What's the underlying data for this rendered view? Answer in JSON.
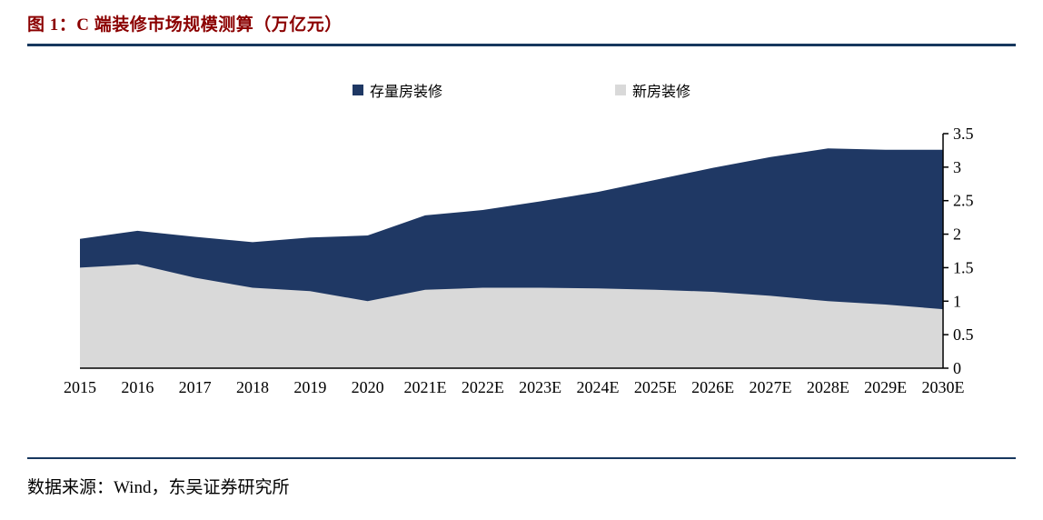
{
  "header": {
    "title": "图 1：C 端装修市场规模测算（万亿元）"
  },
  "footer": {
    "source": "数据来源：Wind，东吴证券研究所"
  },
  "chart_data": {
    "type": "area",
    "stacked": true,
    "title": "C 端装修市场规模测算（万亿元）",
    "xlabel": "",
    "ylabel": "",
    "ylim": [
      0,
      3.5
    ],
    "yticks": [
      0,
      0.5,
      1,
      1.5,
      2,
      2.5,
      3,
      3.5
    ],
    "yaxis_position": "right",
    "legend_position": "top",
    "grid": false,
    "categories": [
      "2015",
      "2016",
      "2017",
      "2018",
      "2019",
      "2020",
      "2021E",
      "2022E",
      "2023E",
      "2024E",
      "2025E",
      "2026E",
      "2027E",
      "2028E",
      "2029E",
      "2030E"
    ],
    "series": [
      {
        "name": "新房装修",
        "color": "#D9D9D9",
        "values": [
          1.5,
          1.55,
          1.35,
          1.2,
          1.15,
          1.0,
          1.17,
          1.2,
          1.2,
          1.19,
          1.17,
          1.14,
          1.08,
          1.0,
          0.95,
          0.88
        ]
      },
      {
        "name": "存量房装修",
        "color": "#1F3864",
        "values": [
          0.43,
          0.5,
          0.61,
          0.68,
          0.8,
          0.98,
          1.11,
          1.16,
          1.29,
          1.44,
          1.64,
          1.85,
          2.07,
          2.28,
          2.31,
          2.38
        ]
      }
    ],
    "legend": [
      {
        "label": "存量房装修",
        "color": "#1F3864"
      },
      {
        "label": "新房装修",
        "color": "#D9D9D9"
      }
    ],
    "axis_color": "#000000"
  }
}
